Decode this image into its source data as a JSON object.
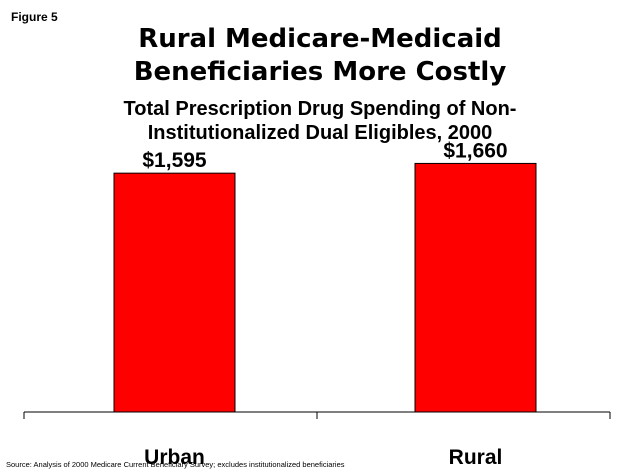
{
  "figure_label": "Figure 5",
  "title_lines": [
    "Rural Medicare-Medicaid",
    "Beneficiaries More Costly"
  ],
  "subtitle_lines": [
    "Total Prescription Drug Spending of Non-",
    "Institutionalized Dual Eligibles, 2000"
  ],
  "source": "Source:  Analysis of 2000 Medicare Current Beneficiary Survey; excludes institutionalized beneficiaries",
  "colors": {
    "bar": "#ff0000",
    "bar_outline": "#000000"
  },
  "chart_data": {
    "type": "bar",
    "title": "Rural Medicare-Medicaid Beneficiaries More Costly",
    "subtitle": "Total Prescription Drug Spending of Non-Institutionalized Dual Eligibles, 2000",
    "categories": [
      "Urban",
      "Rural"
    ],
    "values": [
      1595,
      1660
    ],
    "value_labels": [
      "$1,595",
      "$1,660"
    ],
    "ylim": [
      0,
      2000
    ],
    "xlabel": "",
    "ylabel": "",
    "grid": false,
    "legend": "none"
  }
}
